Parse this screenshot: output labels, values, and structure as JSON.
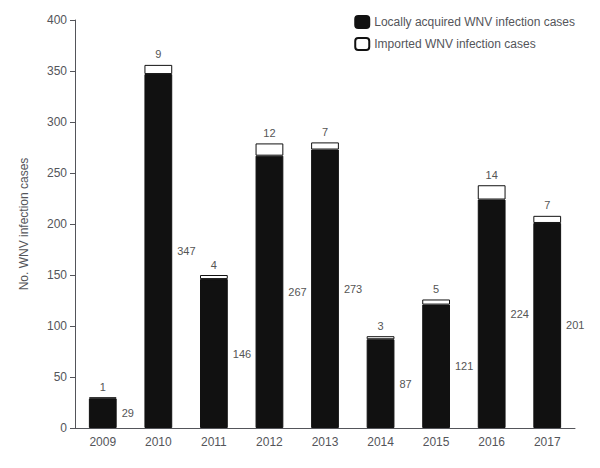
{
  "chart_data": {
    "type": "bar",
    "categories": [
      "2009",
      "2010",
      "2011",
      "2012",
      "2013",
      "2014",
      "2015",
      "2016",
      "2017"
    ],
    "series": [
      {
        "name": "Locally acquired WNV infection cases",
        "color": "#111111",
        "values": [
          29,
          347,
          146,
          267,
          273,
          87,
          121,
          224,
          201
        ]
      },
      {
        "name": "Imported WNV infection cases",
        "color": "#ffffff",
        "values": [
          1,
          9,
          4,
          12,
          7,
          3,
          5,
          14,
          7
        ]
      }
    ],
    "ylabel": "No. WNV infection cases",
    "ylim": [
      0,
      400
    ],
    "yticks": [
      0,
      50,
      100,
      150,
      200,
      250,
      300,
      350,
      400
    ],
    "stacked": true,
    "data_labels": true,
    "legend": "upper right",
    "grid": false
  }
}
